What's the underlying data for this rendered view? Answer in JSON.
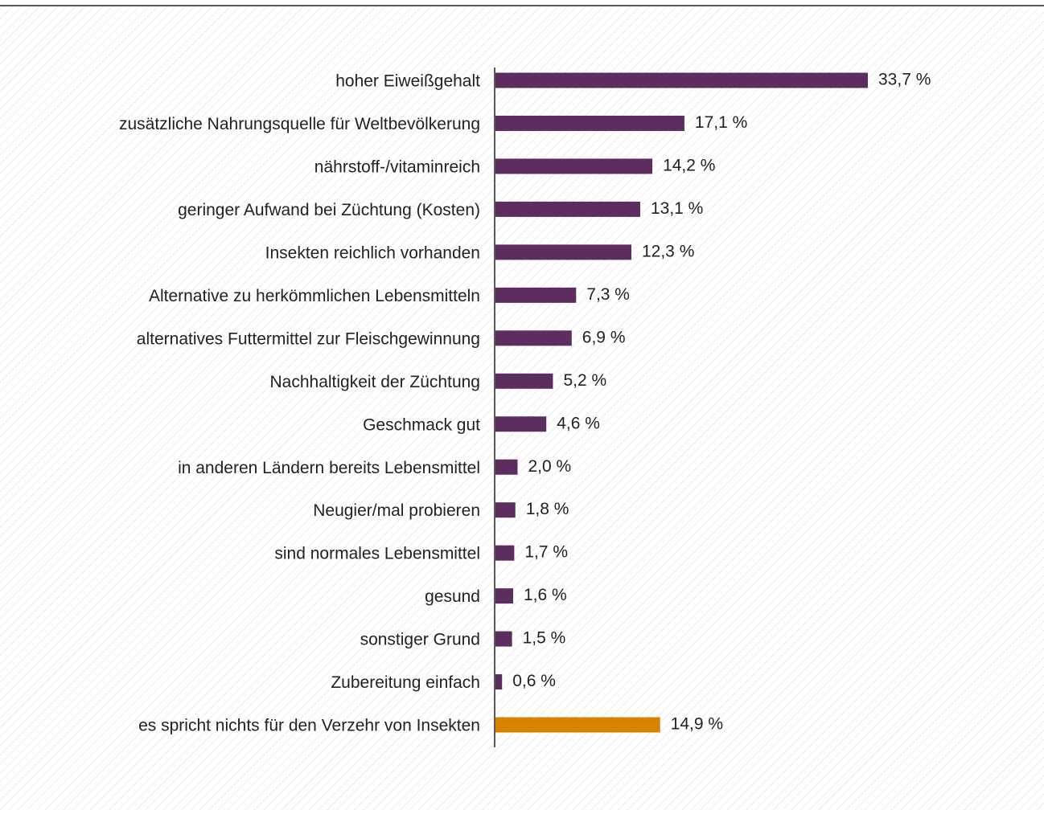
{
  "chart_data": {
    "type": "barh",
    "categories": [
      "hoher Eiweißgehalt",
      "zusätzliche Nahrungsquelle für Weltbevölkerung",
      "nährstoff-/vitaminreich",
      "geringer Aufwand bei Züchtung (Kosten)",
      "Insekten reichlich vorhanden",
      "Alternative zu herkömmlichen Lebensmitteln",
      "alternatives Futtermittel zur Fleischgewinnung",
      "Nachhaltigkeit der Züchtung",
      "Geschmack gut",
      "in anderen Ländern bereits Lebensmittel",
      "Neugier/mal probieren",
      "sind normales Lebensmittel",
      "gesund",
      "sonstiger Grund",
      "Zubereitung einfach",
      "es spricht nichts für den Verzehr von Insekten"
    ],
    "values": [
      33.7,
      17.1,
      14.2,
      13.1,
      12.3,
      7.3,
      6.9,
      5.2,
      4.6,
      2.0,
      1.8,
      1.7,
      1.6,
      1.5,
      0.6,
      14.9
    ],
    "value_labels": [
      "33,7 %",
      "17,1 %",
      "14,2 %",
      "13,1 %",
      "12,3 %",
      "7,3 %",
      "6,9 %",
      "5,2 %",
      "4,6 %",
      "2,0 %",
      "1,8 %",
      "1,7 %",
      "1,6 %",
      "1,5 %",
      "0,6 %",
      "14,9 %"
    ],
    "colors": [
      "#5e2d5f",
      "#5e2d5f",
      "#5e2d5f",
      "#5e2d5f",
      "#5e2d5f",
      "#5e2d5f",
      "#5e2d5f",
      "#5e2d5f",
      "#5e2d5f",
      "#5e2d5f",
      "#5e2d5f",
      "#5e2d5f",
      "#5e2d5f",
      "#5e2d5f",
      "#5e2d5f",
      "#d98200"
    ]
  }
}
